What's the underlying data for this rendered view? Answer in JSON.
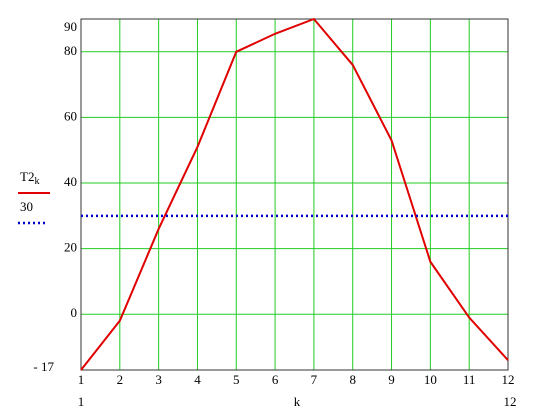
{
  "chart_data": {
    "type": "line",
    "x_label": "k",
    "x": [
      1,
      2,
      3,
      4,
      5,
      6,
      7,
      8,
      9,
      10,
      11,
      12
    ],
    "series": [
      {
        "name": "T2",
        "subscript": "k",
        "color": "#e00000",
        "style": "solid",
        "values": [
          -17,
          -2,
          26,
          51,
          80,
          85.5,
          90,
          76,
          53,
          16,
          -1,
          -14
        ]
      },
      {
        "name": "30",
        "color": "#0000cc",
        "style": "dotted",
        "values": [
          30,
          30,
          30,
          30,
          30,
          30,
          30,
          30,
          30,
          30,
          30,
          30
        ]
      }
    ],
    "xlim": [
      1,
      12
    ],
    "xticks": [
      1,
      2,
      3,
      4,
      5,
      6,
      7,
      8,
      9,
      10,
      11,
      12
    ],
    "ylim": [
      -17,
      90
    ],
    "yticks": [
      {
        "value": -17,
        "label": "- 17"
      },
      0,
      20,
      40,
      60,
      80,
      90
    ],
    "grid": true,
    "grid_color": "#22cc22"
  }
}
